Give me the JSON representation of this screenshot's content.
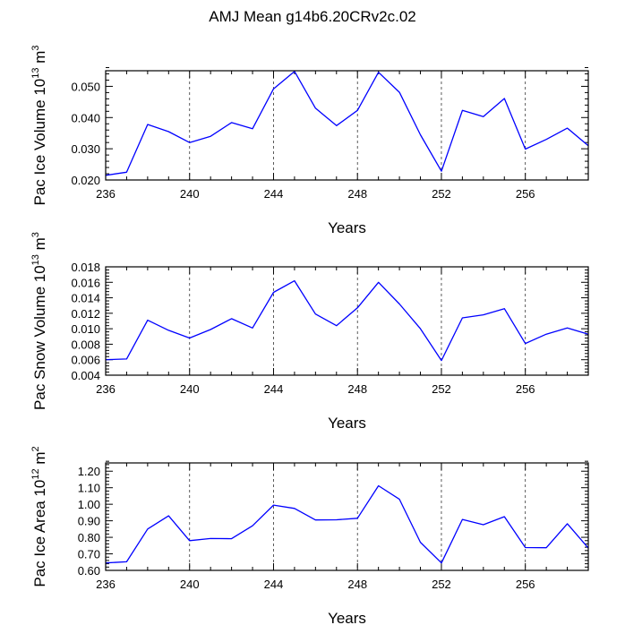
{
  "title": "AMJ Mean g14b6.20CRv2c.02",
  "chart_data": [
    {
      "type": "line",
      "ylabel": "Pac Ice Volume 10",
      "ylabel_exp": "13",
      "ylabel_unit": " m",
      "ylabel_unit_exp": "3",
      "xlabel": "Years",
      "xlim": [
        236,
        259
      ],
      "ylim": [
        0.02,
        0.055
      ],
      "xticks": [
        236,
        240,
        244,
        248,
        252,
        256
      ],
      "yticks": [
        0.02,
        0.03,
        0.04,
        0.05
      ],
      "ytick_labels": [
        "0.020",
        "0.030",
        "0.040",
        "0.050"
      ],
      "x": [
        236,
        237,
        238,
        239,
        240,
        241,
        242,
        243,
        244,
        245,
        246,
        247,
        248,
        249,
        250,
        251,
        252,
        253,
        254,
        255,
        256,
        257,
        258,
        259
      ],
      "values": [
        0.0215,
        0.0225,
        0.0378,
        0.0355,
        0.032,
        0.034,
        0.0384,
        0.0364,
        0.0492,
        0.0548,
        0.043,
        0.0374,
        0.0423,
        0.0545,
        0.0481,
        0.0345,
        0.0228,
        0.0423,
        0.0403,
        0.0461,
        0.0299,
        0.033,
        0.0366,
        0.031
      ],
      "color": "#0000ff"
    },
    {
      "type": "line",
      "ylabel": "Pac Snow Volume 10",
      "ylabel_exp": "13",
      "ylabel_unit": " m",
      "ylabel_unit_exp": "3",
      "xlabel": "Years",
      "xlim": [
        236,
        259
      ],
      "ylim": [
        0.004,
        0.018
      ],
      "xticks": [
        236,
        240,
        244,
        248,
        252,
        256
      ],
      "yticks": [
        0.004,
        0.006,
        0.008,
        0.01,
        0.012,
        0.014,
        0.016,
        0.018
      ],
      "ytick_labels": [
        "0.004",
        "0.006",
        "0.008",
        "0.010",
        "0.012",
        "0.014",
        "0.016",
        "0.018"
      ],
      "x": [
        236,
        237,
        238,
        239,
        240,
        241,
        242,
        243,
        244,
        245,
        246,
        247,
        248,
        249,
        250,
        251,
        252,
        253,
        254,
        255,
        256,
        257,
        258,
        259
      ],
      "values": [
        0.006,
        0.0061,
        0.0111,
        0.0098,
        0.0088,
        0.0099,
        0.0113,
        0.0101,
        0.0147,
        0.0162,
        0.0119,
        0.0104,
        0.0127,
        0.016,
        0.0132,
        0.01,
        0.0059,
        0.0114,
        0.0118,
        0.0126,
        0.0081,
        0.0093,
        0.0101,
        0.0093
      ],
      "color": "#0000ff"
    },
    {
      "type": "line",
      "ylabel": "Pac Ice Area 10",
      "ylabel_exp": "12",
      "ylabel_unit": " m",
      "ylabel_unit_exp": "2",
      "xlabel": "Years",
      "xlim": [
        236,
        259
      ],
      "ylim": [
        0.6,
        1.25
      ],
      "xticks": [
        236,
        240,
        244,
        248,
        252,
        256
      ],
      "yticks": [
        0.6,
        0.7,
        0.8,
        0.9,
        1.0,
        1.1,
        1.2
      ],
      "ytick_labels": [
        "0.60",
        "0.70",
        "0.80",
        "0.90",
        "1.00",
        "1.10",
        "1.20"
      ],
      "x": [
        236,
        237,
        238,
        239,
        240,
        241,
        242,
        243,
        244,
        245,
        246,
        247,
        248,
        249,
        250,
        251,
        252,
        253,
        254,
        255,
        256,
        257,
        258,
        259
      ],
      "values": [
        0.645,
        0.652,
        0.85,
        0.93,
        0.78,
        0.793,
        0.792,
        0.87,
        0.995,
        0.975,
        0.905,
        0.906,
        0.915,
        1.112,
        1.03,
        0.77,
        0.645,
        0.908,
        0.876,
        0.925,
        0.738,
        0.737,
        0.882,
        0.735
      ],
      "color": "#0000ff"
    }
  ]
}
